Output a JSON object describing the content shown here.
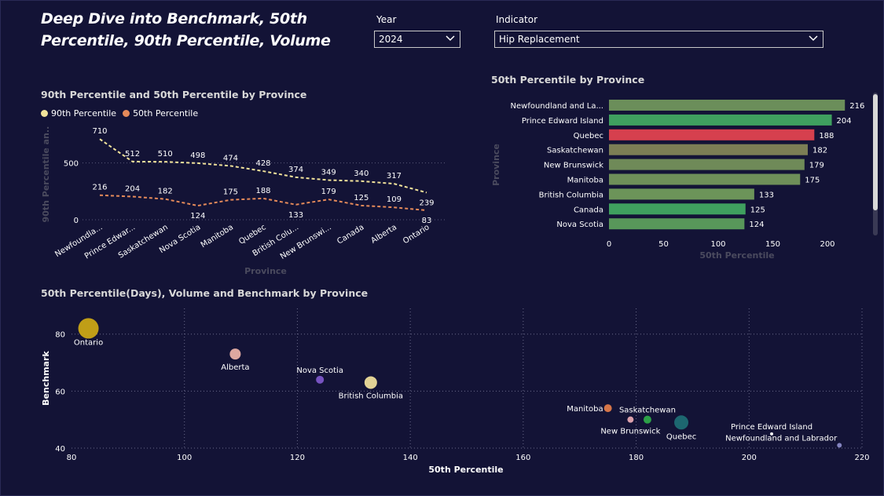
{
  "page": {
    "title": "Deep Dive into Benchmark, 50th Percentile, 90th Percentile, Volume"
  },
  "slicers": {
    "year": {
      "label": "Year",
      "value": "2024"
    },
    "indicator": {
      "label": "Indicator",
      "value": "Hip Replacement"
    }
  },
  "line_chart": {
    "title": "90th Percentile and 50th Percentile by Province",
    "legend_90": "90th Percentile",
    "legend_50": "50th Percentile",
    "color_90": "#f2e39b",
    "color_50": "#e58a5a"
  },
  "bar_chart": {
    "title": "50th Percentile by Province"
  },
  "scatter_chart": {
    "title": "50th Percentile(Days), Volume and Benchmark by Province"
  },
  "chart_data": [
    {
      "type": "line",
      "title": "90th Percentile and 50th Percentile by Province",
      "xlabel": "Province",
      "ylabel": "90th Percentile an...",
      "categories": [
        "Newfoundla...",
        "Prince Edwar...",
        "Saskatchewan",
        "Nova Scotia",
        "Manitoba",
        "Quebec",
        "British Colu...",
        "New Brunswi...",
        "Canada",
        "Alberta",
        "Ontario"
      ],
      "series": [
        {
          "name": "90th Percentile",
          "values": [
            710,
            512,
            510,
            498,
            474,
            428,
            374,
            349,
            340,
            317,
            239
          ]
        },
        {
          "name": "50th Percentile",
          "values": [
            216,
            204,
            182,
            124,
            175,
            188,
            133,
            179,
            125,
            109,
            83
          ]
        }
      ],
      "yticks": [
        0,
        500
      ],
      "ylim": [
        0,
        760
      ],
      "grid": true,
      "legend": "top-left"
    },
    {
      "type": "bar",
      "orientation": "horizontal",
      "title": "50th Percentile by Province",
      "xlabel": "50th Percentile",
      "ylabel": "Province",
      "categories": [
        "Newfoundland and La...",
        "Prince Edward Island",
        "Quebec",
        "Saskatchewan",
        "New Brunswick",
        "Manitoba",
        "British Columbia",
        "Canada",
        "Nova Scotia"
      ],
      "values": [
        216,
        204,
        188,
        182,
        179,
        175,
        133,
        125,
        124
      ],
      "colors": [
        "#6b8e5a",
        "#3fa05f",
        "#d6404e",
        "#7c7e55",
        "#6f8a58",
        "#6e8f59",
        "#6c9459",
        "#3fa05f",
        "#58975a"
      ],
      "xticks": [
        0,
        50,
        100,
        150,
        200
      ],
      "xlim": [
        0,
        225
      ]
    },
    {
      "type": "scatter",
      "title": "50th Percentile(Days), Volume and Benchmark by Province",
      "xlabel": "50th Percentile",
      "ylabel": "Benchmark",
      "xticks": [
        80,
        100,
        120,
        140,
        160,
        180,
        200,
        220
      ],
      "yticks": [
        40,
        60,
        80
      ],
      "xlim": [
        80,
        220
      ],
      "ylim": [
        40,
        89
      ],
      "grid": true,
      "points": [
        {
          "label": "Ontario",
          "x": 83,
          "y": 82,
          "volume": 13,
          "color": "#c9a516"
        },
        {
          "label": "Alberta",
          "x": 109,
          "y": 73,
          "volume": 7,
          "color": "#e8b0a6"
        },
        {
          "label": "Nova Scotia",
          "x": 124,
          "y": 64,
          "volume": 5,
          "color": "#7c56c9"
        },
        {
          "label": "British Columbia",
          "x": 133,
          "y": 63,
          "volume": 8,
          "color": "#eddc9b"
        },
        {
          "label": "Manitoba",
          "x": 175,
          "y": 54,
          "volume": 5,
          "color": "#e07a4a"
        },
        {
          "label": "New Brunswick",
          "x": 179,
          "y": 50,
          "volume": 4,
          "color": "#e6a8b2"
        },
        {
          "label": "Saskatchewan",
          "x": 182,
          "y": 50,
          "volume": 5,
          "color": "#2ea84a"
        },
        {
          "label": "Quebec",
          "x": 188,
          "y": 49,
          "volume": 9,
          "color": "#1d6b74"
        },
        {
          "label": "Prince Edward Island",
          "x": 204,
          "y": 45,
          "volume": 2,
          "color": "#ffffff"
        },
        {
          "label": "Newfoundland and Labrador",
          "x": 216,
          "y": 41,
          "volume": 3,
          "color": "#8a8ac8"
        }
      ]
    }
  ]
}
